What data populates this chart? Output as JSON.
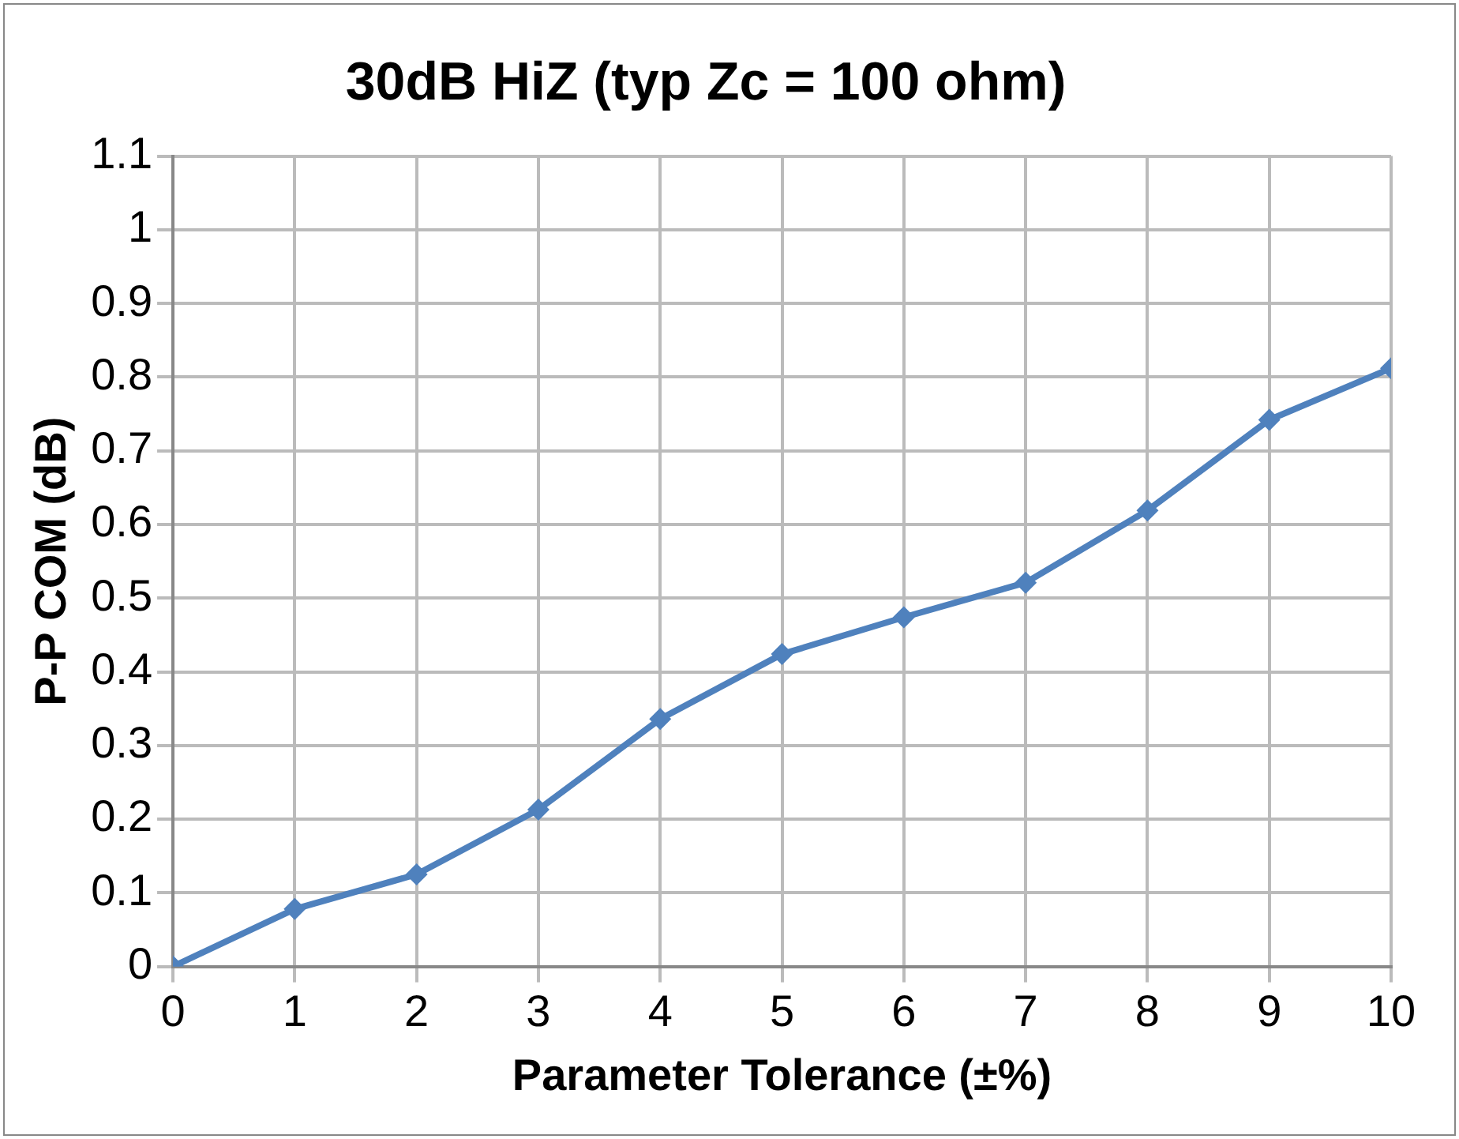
{
  "chart_data": {
    "type": "line",
    "title": "30dB HiZ (typ Zc = 100 ohm)",
    "xlabel": "Parameter Tolerance (±%)",
    "ylabel": "P-P COM (dB)",
    "x": [
      0,
      1,
      2,
      3,
      4,
      5,
      6,
      7,
      8,
      9,
      10
    ],
    "series": [
      {
        "color": "#4f81bd",
        "values": [
          0,
          0.078,
          0.125,
          0.213,
          0.336,
          0.424,
          0.474,
          0.521,
          0.619,
          0.742,
          0.812
        ]
      }
    ],
    "xlim": [
      0,
      10
    ],
    "xticks": [
      0,
      1,
      2,
      3,
      4,
      5,
      6,
      7,
      8,
      9,
      10
    ],
    "ylim": [
      0,
      1.1
    ],
    "yticks": [
      0,
      0.1,
      0.2,
      0.3,
      0.4,
      0.5,
      0.6,
      0.7,
      0.8,
      0.9,
      1,
      1.1
    ],
    "grid": true,
    "legend": false,
    "marker": "diamond",
    "line_style": "solid"
  }
}
